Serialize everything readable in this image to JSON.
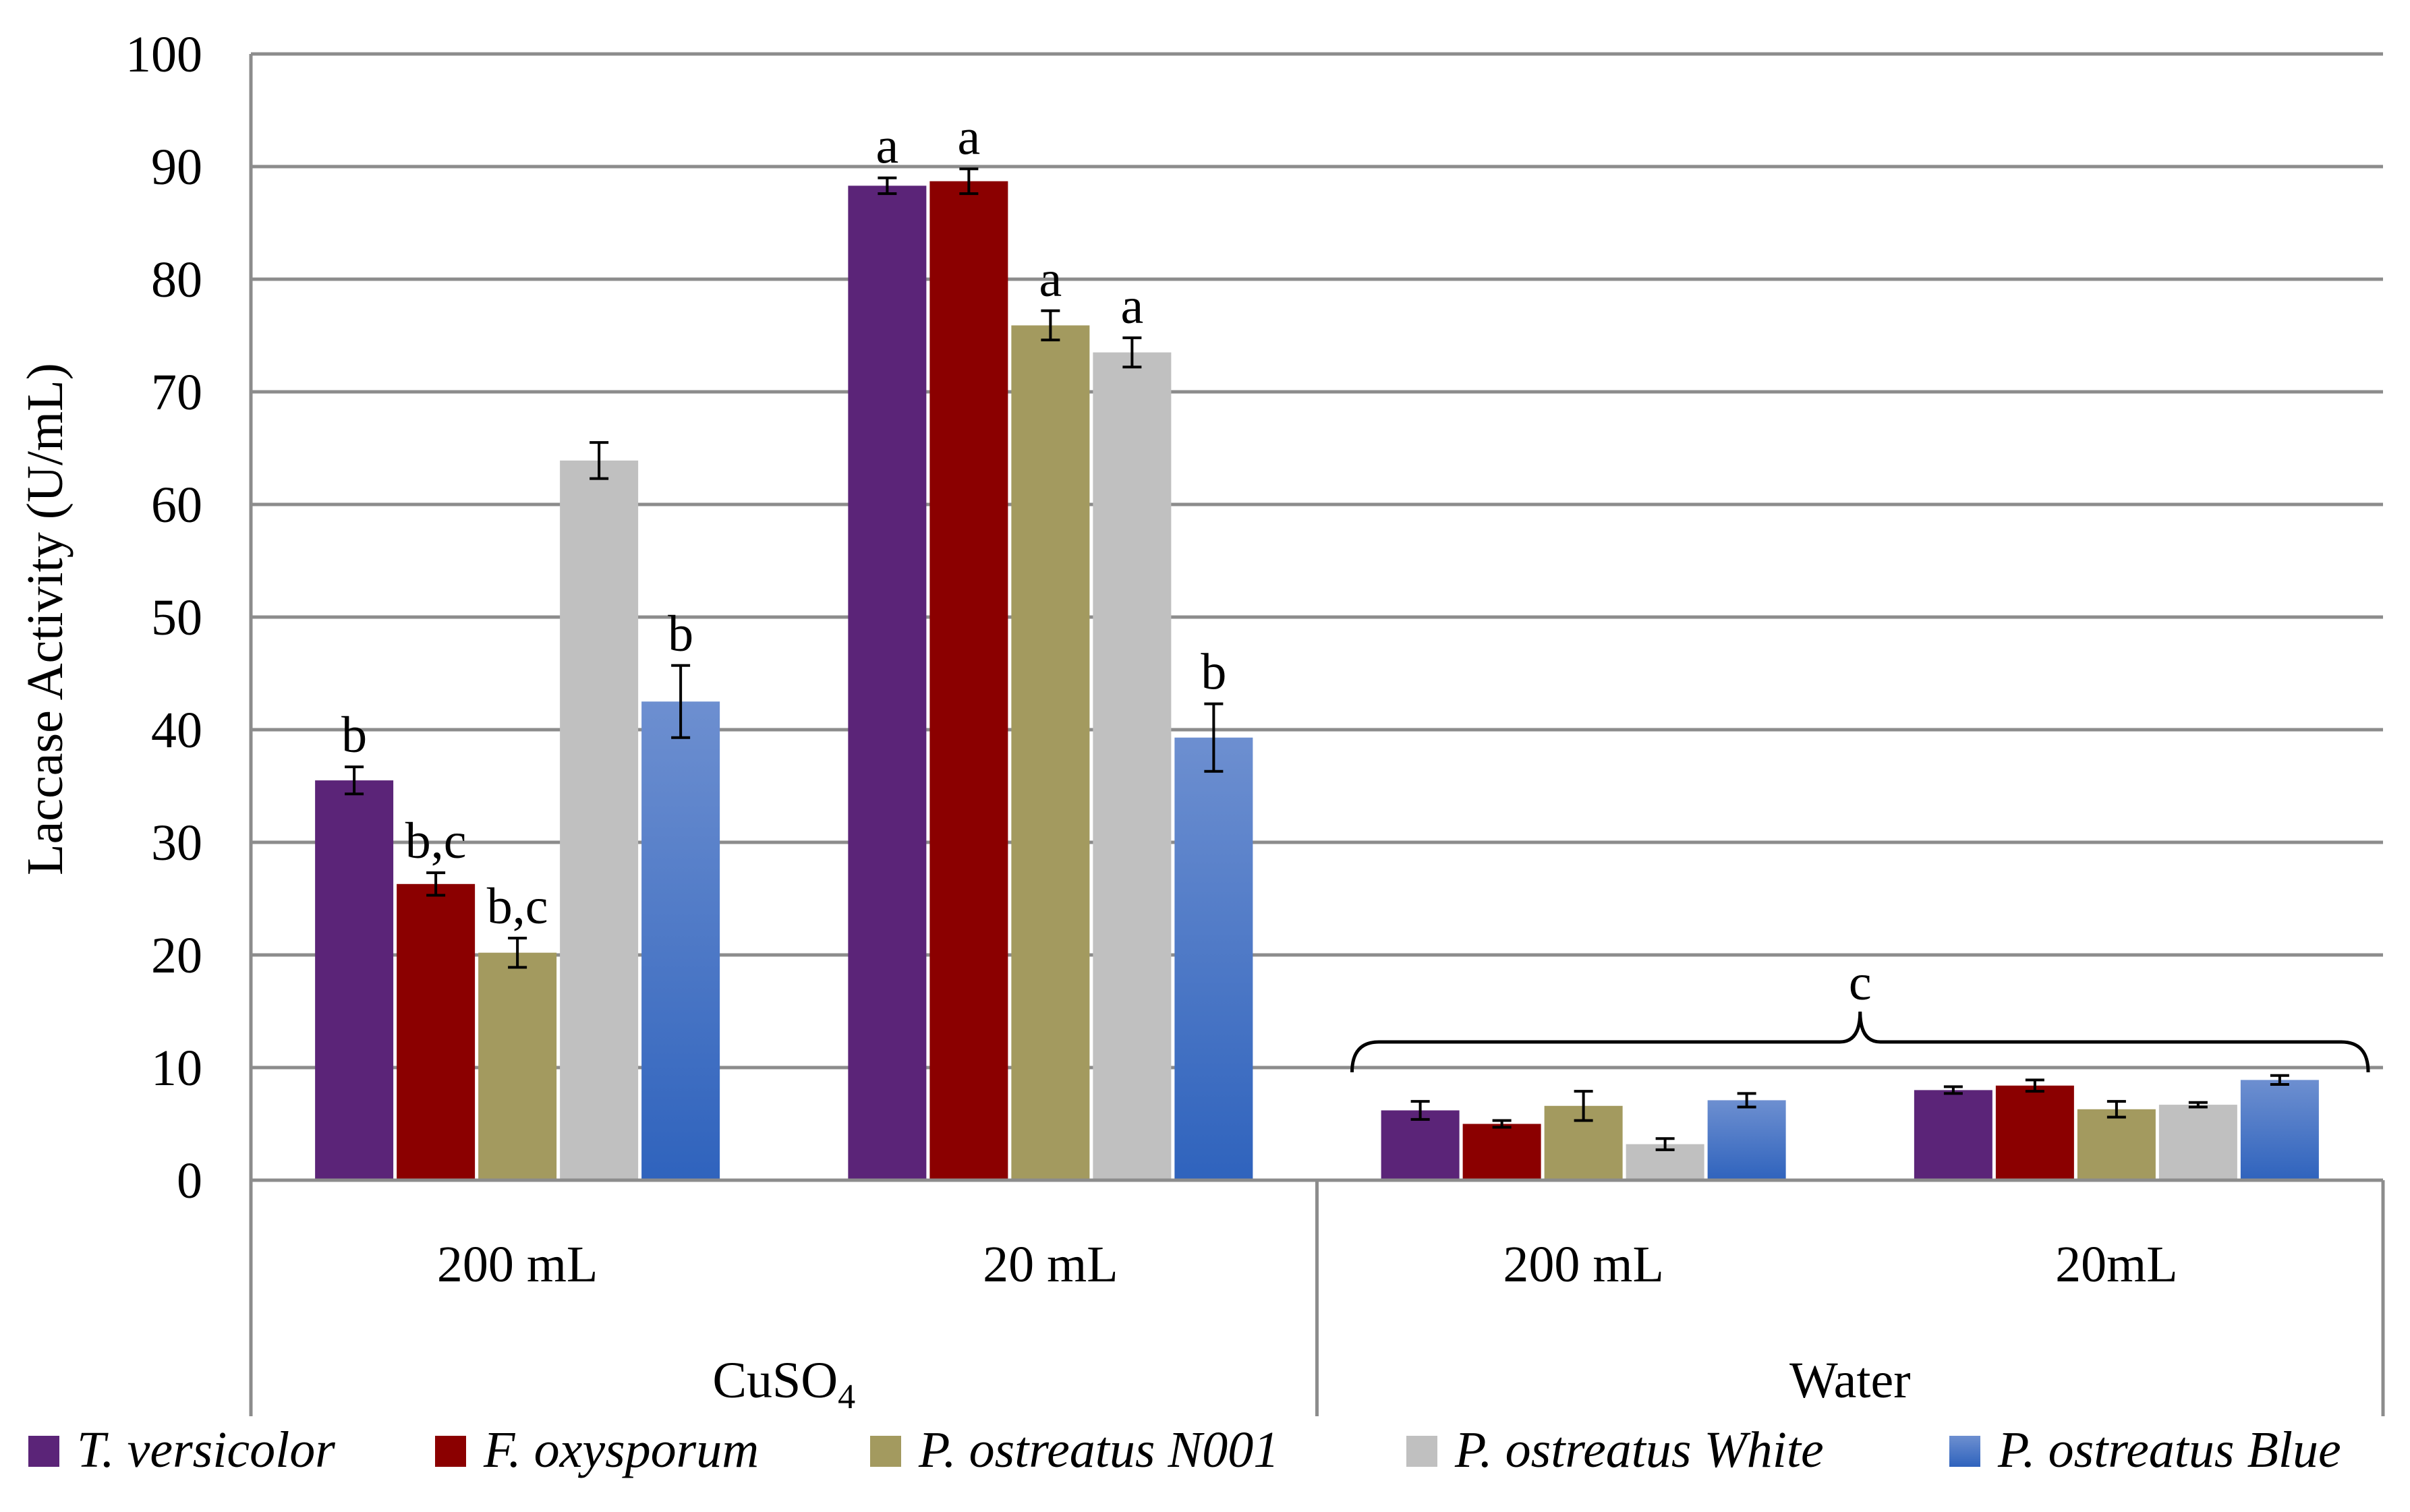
{
  "chart_data": {
    "type": "bar",
    "title": "",
    "ylabel": "Laccase Activity (U/mL)",
    "xlabel": "",
    "ylim": [
      0,
      100
    ],
    "y_ticks": [
      0,
      10,
      20,
      30,
      40,
      50,
      60,
      70,
      80,
      90,
      100
    ],
    "grid": true,
    "groups": [
      {
        "name": "CuSO",
        "subscript": "4",
        "categories": [
          "200 mL",
          "20 mL"
        ]
      },
      {
        "name": "Water",
        "subscript": "",
        "categories": [
          "200 mL",
          "20mL"
        ]
      }
    ],
    "categories": [
      "200 mL",
      "20 mL",
      "200 mL",
      "20mL"
    ],
    "series": [
      {
        "name": "T. versicolor",
        "color": "#5b2478",
        "values": [
          35.5,
          88.3,
          6.2,
          8.0
        ],
        "errors": [
          1.2,
          0.7,
          0.8,
          0.3
        ],
        "labels": [
          "b",
          "a",
          "",
          ""
        ]
      },
      {
        "name": "F. oxysporum",
        "color": "#8b0000",
        "values": [
          26.3,
          88.7,
          5.0,
          8.4
        ],
        "errors": [
          1.0,
          1.1,
          0.3,
          0.5
        ],
        "labels": [
          "b,c",
          "a",
          "",
          ""
        ]
      },
      {
        "name": "P. ostreatus N001",
        "color": "#a39a5f",
        "values": [
          20.2,
          75.9,
          6.6,
          6.3
        ],
        "errors": [
          1.3,
          1.3,
          1.3,
          0.7
        ],
        "labels": [
          "b,c",
          "a",
          "",
          ""
        ]
      },
      {
        "name": "P. ostreatus White",
        "color": "#c0c0c0",
        "values": [
          63.9,
          73.5,
          3.2,
          6.7
        ],
        "errors": [
          1.6,
          1.3,
          0.5,
          0.2
        ],
        "labels": [
          "",
          "a",
          "",
          ""
        ]
      },
      {
        "name": "P. ostreatus Blue",
        "color": "#4472c4",
        "values": [
          42.5,
          39.3,
          7.1,
          8.9
        ],
        "errors": [
          3.2,
          3.0,
          0.6,
          0.4
        ],
        "labels": [
          "b",
          "b",
          "",
          ""
        ]
      }
    ],
    "annotations": [
      {
        "text": "c",
        "type": "brace",
        "spans": "Water"
      }
    ],
    "legend_position": "bottom"
  }
}
